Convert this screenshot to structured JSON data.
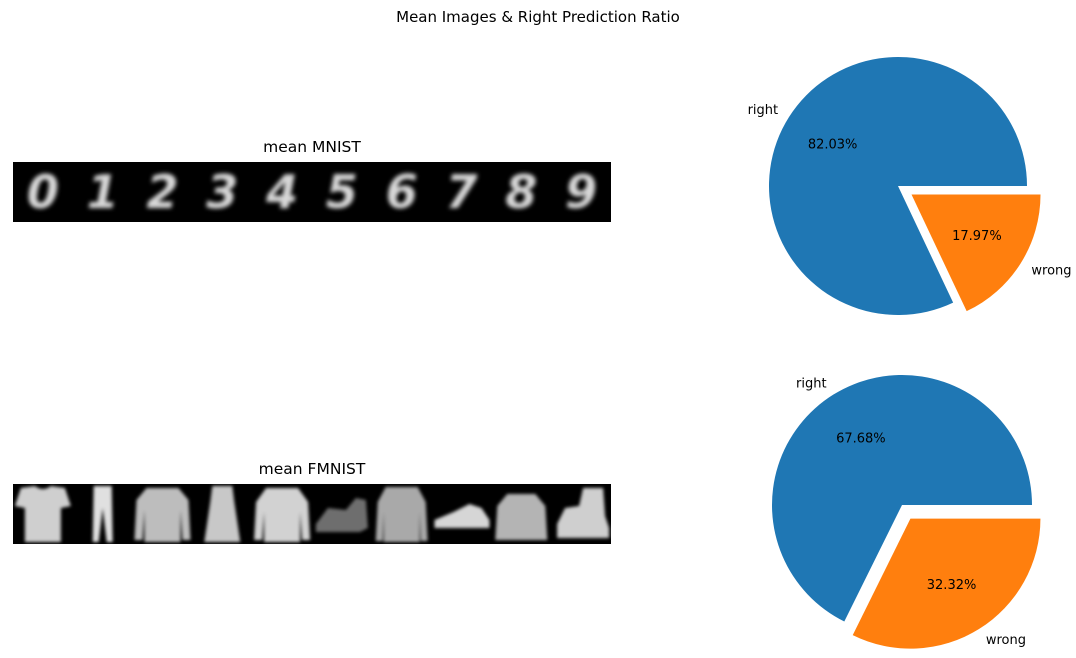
{
  "figure": {
    "title": "Mean Images & Right Prediction Ratio"
  },
  "colors": {
    "right": "#1f77b4",
    "wrong": "#ff7f0e",
    "image_background": "#000000"
  },
  "panels": [
    {
      "title": "mean MNIST",
      "image_type": "mean-digit-images",
      "glyphs": [
        "0",
        "1",
        "2",
        "3",
        "4",
        "5",
        "6",
        "7",
        "8",
        "9"
      ]
    },
    {
      "title": "mean FMNIST",
      "image_type": "mean-fashion-images",
      "items": [
        "tshirt",
        "trouser",
        "pullover",
        "dress",
        "coat",
        "sandal",
        "shirt",
        "sneaker",
        "bag",
        "boot"
      ]
    }
  ],
  "chart_data": [
    {
      "type": "pie",
      "title": "",
      "labels": [
        "right",
        "wrong"
      ],
      "values": [
        82.03,
        17.97
      ],
      "value_labels": [
        "82.03%",
        "17.97%"
      ],
      "explode": [
        "none",
        "wrong"
      ]
    },
    {
      "type": "pie",
      "title": "",
      "labels": [
        "right",
        "wrong"
      ],
      "values": [
        67.68,
        32.32
      ],
      "value_labels": [
        "67.68%",
        "32.32%"
      ],
      "explode": [
        "none",
        "wrong"
      ]
    }
  ]
}
